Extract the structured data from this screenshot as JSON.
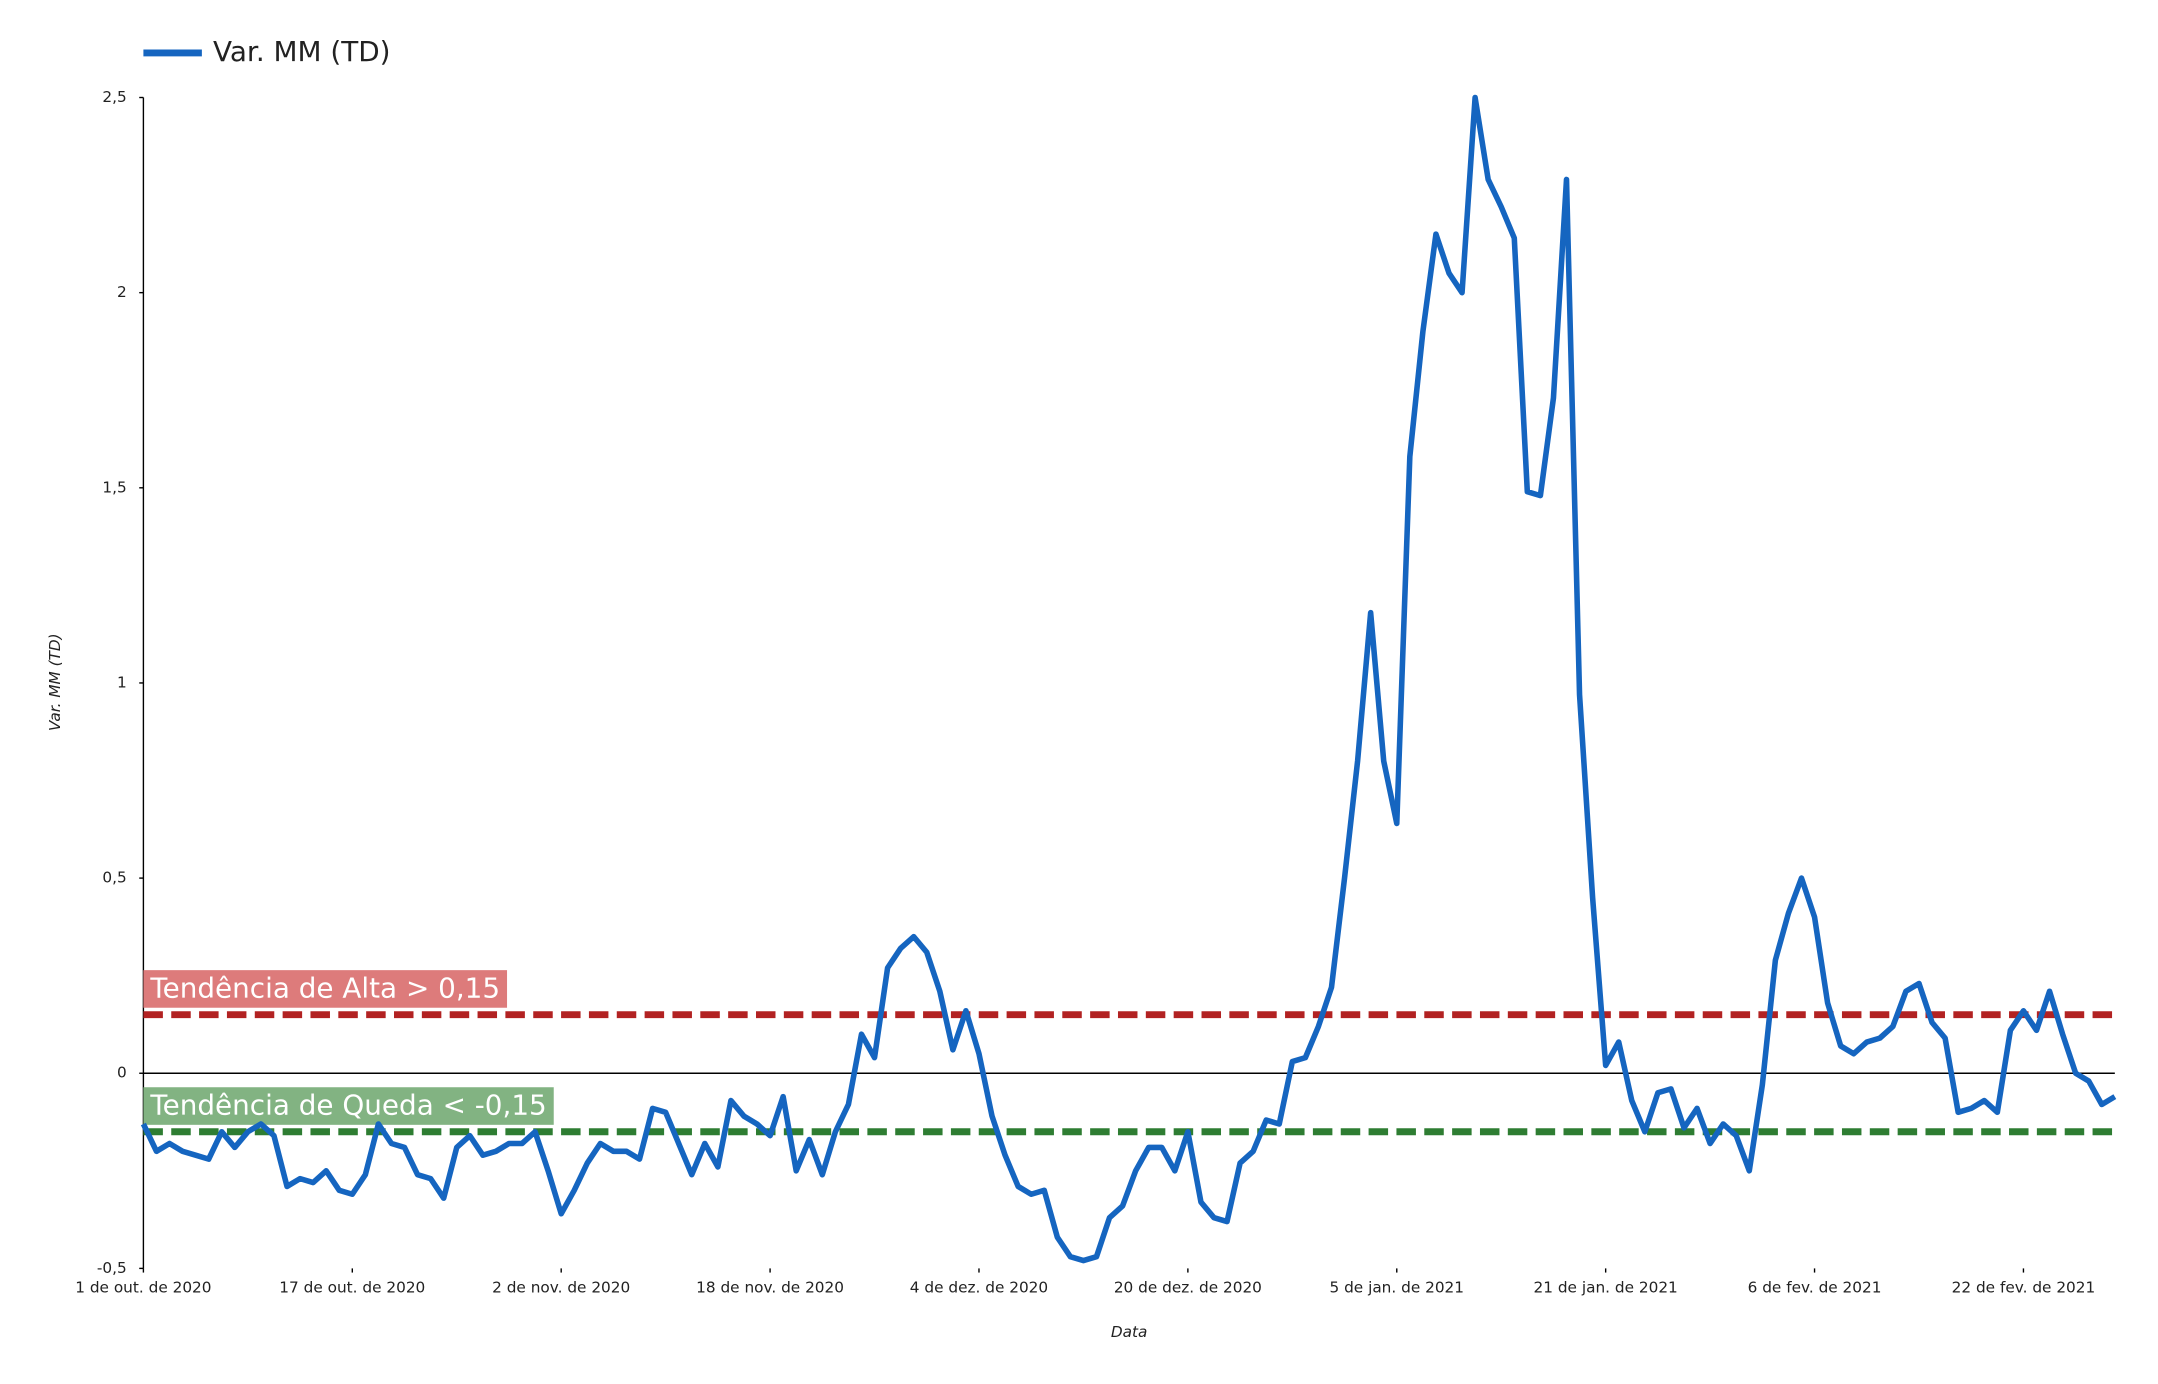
{
  "chart_data": {
    "type": "line",
    "xlabel": "Data",
    "ylabel": "Var. MM (TD)",
    "x": [
      "2020-10-01",
      "2020-10-02",
      "2020-10-03",
      "2020-10-04",
      "2020-10-05",
      "2020-10-06",
      "2020-10-07",
      "2020-10-08",
      "2020-10-09",
      "2020-10-10",
      "2020-10-11",
      "2020-10-12",
      "2020-10-13",
      "2020-10-14",
      "2020-10-15",
      "2020-10-16",
      "2020-10-17",
      "2020-10-18",
      "2020-10-19",
      "2020-10-20",
      "2020-10-21",
      "2020-10-22",
      "2020-10-23",
      "2020-10-24",
      "2020-10-25",
      "2020-10-26",
      "2020-10-27",
      "2020-10-28",
      "2020-10-29",
      "2020-10-30",
      "2020-10-31",
      "2020-11-01",
      "2020-11-02",
      "2020-11-03",
      "2020-11-04",
      "2020-11-05",
      "2020-11-06",
      "2020-11-07",
      "2020-11-08",
      "2020-11-09",
      "2020-11-10",
      "2020-11-11",
      "2020-11-12",
      "2020-11-13",
      "2020-11-14",
      "2020-11-15",
      "2020-11-16",
      "2020-11-17",
      "2020-11-18",
      "2020-11-19",
      "2020-11-20",
      "2020-11-21",
      "2020-11-22",
      "2020-11-23",
      "2020-11-24",
      "2020-11-25",
      "2020-11-26",
      "2020-11-27",
      "2020-11-28",
      "2020-11-29",
      "2020-11-30",
      "2020-12-01",
      "2020-12-02",
      "2020-12-03",
      "2020-12-04",
      "2020-12-05",
      "2020-12-06",
      "2020-12-07",
      "2020-12-08",
      "2020-12-09",
      "2020-12-10",
      "2020-12-11",
      "2020-12-12",
      "2020-12-13",
      "2020-12-14",
      "2020-12-15",
      "2020-12-16",
      "2020-12-17",
      "2020-12-18",
      "2020-12-19",
      "2020-12-20",
      "2020-12-21",
      "2020-12-22",
      "2020-12-23",
      "2020-12-24",
      "2020-12-25",
      "2020-12-26",
      "2020-12-27",
      "2020-12-28",
      "2020-12-29",
      "2020-12-30",
      "2020-12-31",
      "2021-01-01",
      "2021-01-02",
      "2021-01-03",
      "2021-01-04",
      "2021-01-05",
      "2021-01-06",
      "2021-01-07",
      "2021-01-08",
      "2021-01-09",
      "2021-01-10",
      "2021-01-11",
      "2021-01-12",
      "2021-01-13",
      "2021-01-14",
      "2021-01-15",
      "2021-01-16",
      "2021-01-17",
      "2021-01-18",
      "2021-01-19",
      "2021-01-20",
      "2021-01-21",
      "2021-01-22",
      "2021-01-23",
      "2021-01-24",
      "2021-01-25",
      "2021-01-26",
      "2021-01-27",
      "2021-01-28",
      "2021-01-29",
      "2021-01-30",
      "2021-01-31",
      "2021-02-01",
      "2021-02-02",
      "2021-02-03",
      "2021-02-04",
      "2021-02-05",
      "2021-02-06",
      "2021-02-07",
      "2021-02-08",
      "2021-02-09",
      "2021-02-10",
      "2021-02-11",
      "2021-02-12",
      "2021-02-13",
      "2021-02-14",
      "2021-02-15",
      "2021-02-16",
      "2021-02-17",
      "2021-02-18",
      "2021-02-19",
      "2021-02-20",
      "2021-02-21",
      "2021-02-22",
      "2021-02-23",
      "2021-02-24",
      "2021-02-25",
      "2021-02-26",
      "2021-02-27",
      "2021-02-28",
      "2021-03-01"
    ],
    "series": [
      {
        "name": "Var. MM (TD)",
        "color": "#1565c0",
        "values": [
          -0.13,
          -0.2,
          -0.18,
          -0.2,
          -0.21,
          -0.22,
          -0.15,
          -0.19,
          -0.15,
          -0.13,
          -0.16,
          -0.29,
          -0.27,
          -0.28,
          -0.25,
          -0.3,
          -0.31,
          -0.26,
          -0.13,
          -0.18,
          -0.19,
          -0.26,
          -0.27,
          -0.32,
          -0.19,
          -0.16,
          -0.21,
          -0.2,
          -0.18,
          -0.18,
          -0.15,
          -0.25,
          -0.36,
          -0.3,
          -0.23,
          -0.18,
          -0.2,
          -0.2,
          -0.22,
          -0.09,
          -0.1,
          -0.18,
          -0.26,
          -0.18,
          -0.24,
          -0.07,
          -0.11,
          -0.13,
          -0.16,
          -0.06,
          -0.25,
          -0.17,
          -0.26,
          -0.15,
          -0.08,
          0.1,
          0.04,
          0.27,
          0.32,
          0.35,
          0.31,
          0.21,
          0.06,
          0.16,
          0.05,
          -0.11,
          -0.21,
          -0.29,
          -0.31,
          -0.3,
          -0.42,
          -0.47,
          -0.48,
          -0.47,
          -0.37,
          -0.34,
          -0.25,
          -0.19,
          -0.19,
          -0.25,
          -0.15,
          -0.33,
          -0.37,
          -0.38,
          -0.23,
          -0.2,
          -0.12,
          -0.13,
          0.03,
          0.04,
          0.12,
          0.22,
          0.5,
          0.8,
          1.18,
          0.8,
          0.64,
          1.58,
          1.9,
          2.15,
          2.05,
          2.0,
          2.5,
          2.29,
          2.22,
          2.14,
          1.49,
          1.48,
          1.73,
          2.29,
          0.97,
          0.45,
          0.02,
          0.08,
          -0.07,
          -0.15,
          -0.05,
          -0.04,
          -0.14,
          -0.09,
          -0.18,
          -0.13,
          -0.16,
          -0.25,
          -0.03,
          0.29,
          0.41,
          0.5,
          0.4,
          0.18,
          0.07,
          0.05,
          0.08,
          0.09,
          0.12,
          0.21,
          0.23,
          0.13,
          0.09,
          -0.1,
          -0.09,
          -0.07,
          -0.1,
          0.11,
          0.16,
          0.11,
          0.21,
          0.1,
          0.0,
          -0.02,
          -0.08,
          -0.06
        ]
      }
    ],
    "xlim": [
      "2020-10-01",
      "2021-03-01"
    ],
    "xticks": [
      {
        "value": "2020-10-01",
        "label": "1 de out. de 2020"
      },
      {
        "value": "2020-10-17",
        "label": "17 de out. de 2020"
      },
      {
        "value": "2020-11-02",
        "label": "2 de nov. de 2020"
      },
      {
        "value": "2020-11-18",
        "label": "18 de nov. de 2020"
      },
      {
        "value": "2020-12-04",
        "label": "4 de dez. de 2020"
      },
      {
        "value": "2020-12-20",
        "label": "20 de dez. de 2020"
      },
      {
        "value": "2021-01-05",
        "label": "5 de jan. de 2021"
      },
      {
        "value": "2021-01-21",
        "label": "21 de jan. de 2021"
      },
      {
        "value": "2021-02-06",
        "label": "6 de fev. de 2021"
      },
      {
        "value": "2021-02-22",
        "label": "22 de fev. de 2021"
      }
    ],
    "ylim": [
      -0.5,
      2.5
    ],
    "yticks": [
      {
        "value": -0.5,
        "label": "-0,5"
      },
      0,
      {
        "value": 0.5,
        "label": "0,5"
      },
      1,
      {
        "value": 1.5,
        "label": "1,5"
      },
      2,
      {
        "value": 2.5,
        "label": "2,5"
      }
    ],
    "grid": false,
    "legend": "top-left",
    "annotations": [
      {
        "label": "Tendência de Alta > 0,15",
        "value": 0.15,
        "color": "#b22222",
        "box_color": "#dd7b7b"
      },
      {
        "label": "Tendência de Queda < -0,15",
        "value": -0.15,
        "color": "#2e7d32",
        "box_color": "#82b382"
      }
    ]
  }
}
